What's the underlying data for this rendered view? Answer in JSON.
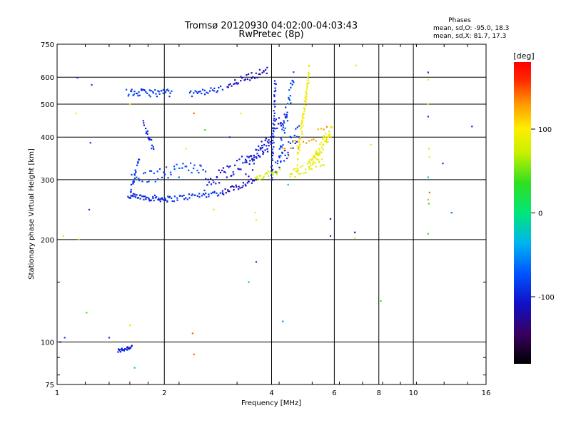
{
  "chart_data": {
    "type": "scatter",
    "title": "Tromsø 20120930 04:02:00-04:03:43",
    "subtitle": "RwPretec (8p)",
    "xlabel": "Frequency [MHz]",
    "ylabel": "Stationary phase Virtual Height [km]",
    "x_scale": "log",
    "y_scale": "log",
    "xlim": [
      1,
      16
    ],
    "ylim": [
      75,
      750
    ],
    "x_ticks": [
      "1",
      "2",
      "4",
      "6",
      "8",
      "10",
      "16"
    ],
    "y_ticks": [
      "75",
      "100",
      "200",
      "300",
      "400",
      "500",
      "600",
      "750"
    ],
    "grid": true,
    "stats": {
      "heading": "Phases",
      "line_o": "mean, sd,O: -95.0, 18.3",
      "line_x": "mean, sd,X:  81.7, 17.3"
    },
    "colorbar": {
      "label": "[deg]",
      "range": [
        -180,
        180
      ],
      "tick_labels": [
        "100",
        "0",
        "-100"
      ],
      "tick_values": [
        100,
        0,
        -100
      ]
    },
    "traces": [
      {
        "x0": 1.48,
        "x1": 1.62,
        "y0": 94,
        "y1": 97,
        "phase": -110,
        "n": 25,
        "jitter": 0.015
      },
      {
        "x0": 1.58,
        "x1": 2.05,
        "y0": 268,
        "y1": 263,
        "phase": -105,
        "n": 50,
        "jitter": 0.02
      },
      {
        "x0": 2.05,
        "x1": 2.9,
        "y0": 263,
        "y1": 275,
        "phase": -100,
        "n": 40,
        "jitter": 0.02
      },
      {
        "x0": 2.9,
        "x1": 3.6,
        "y0": 275,
        "y1": 300,
        "phase": -120,
        "n": 30,
        "jitter": 0.02
      },
      {
        "x0": 3.6,
        "x1": 4.2,
        "y0": 300,
        "y1": 320,
        "phase": 85,
        "n": 25,
        "jitter": 0.02
      },
      {
        "x0": 1.62,
        "x1": 2.6,
        "y0": 300,
        "y1": 330,
        "phase": -90,
        "n": 45,
        "jitter": 0.045
      },
      {
        "x0": 1.6,
        "x1": 1.7,
        "y0": 270,
        "y1": 350,
        "phase": -100,
        "n": 20,
        "jitter": 0.02
      },
      {
        "x0": 2.6,
        "x1": 4.0,
        "y0": 290,
        "y1": 380,
        "phase": -110,
        "n": 60,
        "jitter": 0.05
      },
      {
        "x0": 3.4,
        "x1": 4.4,
        "y0": 320,
        "y1": 470,
        "phase": -115,
        "n": 50,
        "jitter": 0.06
      },
      {
        "x0": 4.0,
        "x1": 4.1,
        "y0": 300,
        "y1": 590,
        "phase": -105,
        "n": 40,
        "jitter": 0.01
      },
      {
        "x0": 4.1,
        "x1": 4.8,
        "y0": 330,
        "y1": 420,
        "phase": -100,
        "n": 30,
        "jitter": 0.06
      },
      {
        "x0": 1.75,
        "x1": 1.86,
        "y0": 440,
        "y1": 370,
        "phase": -105,
        "n": 18,
        "jitter": 0.02
      },
      {
        "x0": 1.57,
        "x1": 2.1,
        "y0": 540,
        "y1": 540,
        "phase": -95,
        "n": 45,
        "jitter": 0.025
      },
      {
        "x0": 2.35,
        "x1": 2.9,
        "y0": 535,
        "y1": 555,
        "phase": -100,
        "n": 25,
        "jitter": 0.02
      },
      {
        "x0": 3.0,
        "x1": 3.9,
        "y0": 570,
        "y1": 630,
        "phase": -120,
        "n": 35,
        "jitter": 0.025
      },
      {
        "x0": 4.2,
        "x1": 4.6,
        "y0": 350,
        "y1": 600,
        "phase": -90,
        "n": 35,
        "jitter": 0.06
      },
      {
        "x0": 4.7,
        "x1": 5.1,
        "y0": 330,
        "y1": 630,
        "phase": 100,
        "n": 70,
        "jitter": 0.05
      },
      {
        "x0": 5.1,
        "x1": 5.9,
        "y0": 330,
        "y1": 420,
        "phase": 95,
        "n": 60,
        "jitter": 0.04
      },
      {
        "x0": 4.5,
        "x1": 5.6,
        "y0": 310,
        "y1": 340,
        "phase": 90,
        "n": 30,
        "jitter": 0.03
      },
      {
        "x0": 4.3,
        "x1": 5.7,
        "y0": 360,
        "y1": 420,
        "phase": 135,
        "n": 18,
        "jitter": 0.04
      }
    ],
    "points": [
      {
        "x": 1.02,
        "y": 100,
        "phase": -110
      },
      {
        "x": 1.05,
        "y": 103,
        "phase": -95
      },
      {
        "x": 1.04,
        "y": 205,
        "phase": 100
      },
      {
        "x": 1.14,
        "y": 598,
        "phase": -100
      },
      {
        "x": 1.13,
        "y": 470,
        "phase": 110
      },
      {
        "x": 1.15,
        "y": 200,
        "phase": 110
      },
      {
        "x": 1.21,
        "y": 122,
        "phase": 40
      },
      {
        "x": 1.23,
        "y": 245,
        "phase": -100
      },
      {
        "x": 1.24,
        "y": 385,
        "phase": -95
      },
      {
        "x": 1.25,
        "y": 570,
        "phase": -100
      },
      {
        "x": 1.4,
        "y": 103,
        "phase": -110
      },
      {
        "x": 1.6,
        "y": 112,
        "phase": 110
      },
      {
        "x": 1.65,
        "y": 84,
        "phase": -20
      },
      {
        "x": 1.6,
        "y": 500,
        "phase": 110
      },
      {
        "x": 2.3,
        "y": 370,
        "phase": 100
      },
      {
        "x": 2.4,
        "y": 106,
        "phase": 150
      },
      {
        "x": 2.42,
        "y": 92,
        "phase": 150
      },
      {
        "x": 2.42,
        "y": 470,
        "phase": 150
      },
      {
        "x": 2.6,
        "y": 420,
        "phase": 40
      },
      {
        "x": 2.75,
        "y": 245,
        "phase": 110
      },
      {
        "x": 3.45,
        "y": 150,
        "phase": -30
      },
      {
        "x": 3.62,
        "y": 172,
        "phase": -90
      },
      {
        "x": 3.6,
        "y": 240,
        "phase": 100
      },
      {
        "x": 3.62,
        "y": 228,
        "phase": 100
      },
      {
        "x": 3.05,
        "y": 400,
        "phase": -100
      },
      {
        "x": 3.28,
        "y": 470,
        "phase": 100
      },
      {
        "x": 4.3,
        "y": 115,
        "phase": -60
      },
      {
        "x": 4.45,
        "y": 290,
        "phase": -20
      },
      {
        "x": 5.85,
        "y": 230,
        "phase": -110
      },
      {
        "x": 5.85,
        "y": 205,
        "phase": -100
      },
      {
        "x": 6.85,
        "y": 210,
        "phase": -125
      },
      {
        "x": 6.85,
        "y": 202,
        "phase": 100
      },
      {
        "x": 6.9,
        "y": 650,
        "phase": 110
      },
      {
        "x": 7.6,
        "y": 380,
        "phase": 110
      },
      {
        "x": 8.1,
        "y": 132,
        "phase": 30
      },
      {
        "x": 11.0,
        "y": 620,
        "phase": -110
      },
      {
        "x": 11.0,
        "y": 590,
        "phase": 100
      },
      {
        "x": 11.0,
        "y": 500,
        "phase": 110
      },
      {
        "x": 11.0,
        "y": 460,
        "phase": -100
      },
      {
        "x": 11.05,
        "y": 370,
        "phase": 80
      },
      {
        "x": 11.1,
        "y": 350,
        "phase": 100
      },
      {
        "x": 11.0,
        "y": 305,
        "phase": -30
      },
      {
        "x": 11.1,
        "y": 275,
        "phase": 150
      },
      {
        "x": 11.0,
        "y": 262,
        "phase": 130
      },
      {
        "x": 11.05,
        "y": 255,
        "phase": 40
      },
      {
        "x": 11.0,
        "y": 208,
        "phase": 40
      },
      {
        "x": 12.1,
        "y": 335,
        "phase": -100
      },
      {
        "x": 12.8,
        "y": 240,
        "phase": -70
      },
      {
        "x": 14.6,
        "y": 430,
        "phase": -100
      }
    ]
  }
}
